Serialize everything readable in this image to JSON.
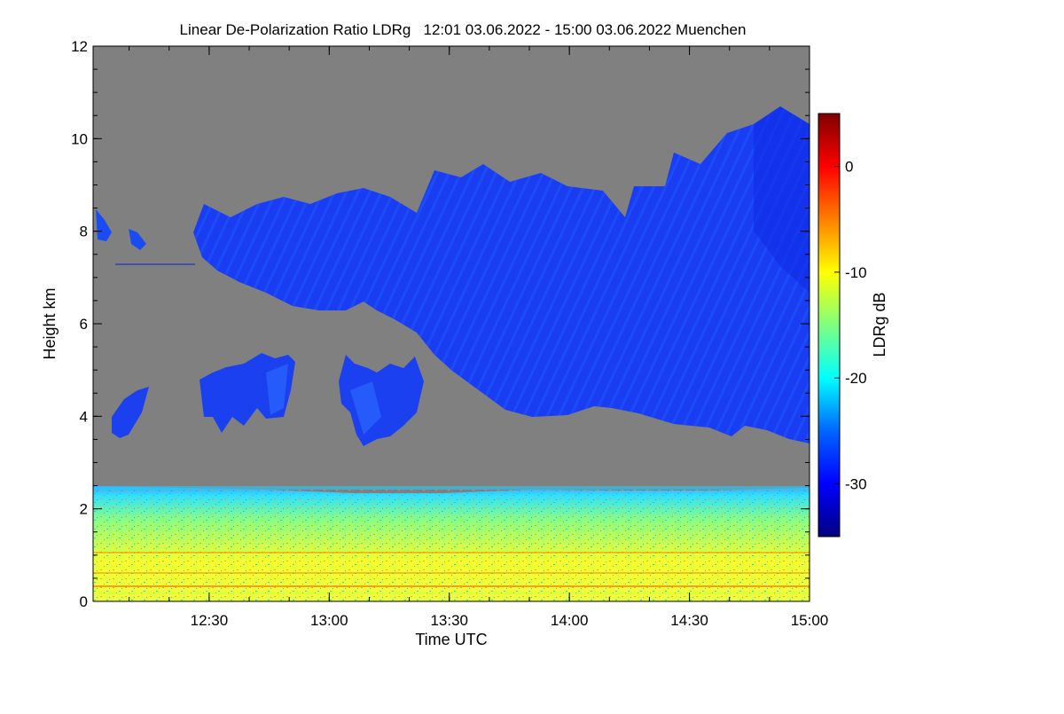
{
  "chart_data": {
    "type": "heatmap",
    "title": "Linear De-Polarization Ratio LDRg   12:01 03.06.2022 - 15:00 03.06.2022 Muenchen",
    "xlabel": "Time UTC",
    "ylabel": "Height km",
    "xlim": [
      "12:01",
      "15:00"
    ],
    "ylim": [
      0,
      12
    ],
    "x_ticks": [
      "12:30",
      "13:00",
      "13:30",
      "14:00",
      "14:30",
      "15:00"
    ],
    "y_ticks": [
      0,
      2,
      4,
      6,
      8,
      10,
      12
    ],
    "colorbar": {
      "label": "LDRg dB",
      "range": [
        -35,
        5
      ],
      "ticks": [
        0,
        -10,
        -20,
        -30
      ],
      "colormap": "jet",
      "no_data_color": "#808080"
    },
    "features": [
      {
        "name": "boundary-layer",
        "height_km": [
          0,
          2.5
        ],
        "ldr_db_range": [
          -20,
          -5
        ]
      },
      {
        "name": "upper-cirrus-layer",
        "time": [
          "12:25",
          "15:00"
        ],
        "base_height_km": [
          6.8,
          3.5
        ],
        "top_height_km": [
          8.6,
          10.6
        ],
        "ldr_db": -30
      },
      {
        "name": "ice-fallstreaks",
        "time": [
          "12:05",
          "13:25"
        ],
        "height_km": [
          3.5,
          5.4
        ],
        "ldr_db": -30
      }
    ]
  }
}
